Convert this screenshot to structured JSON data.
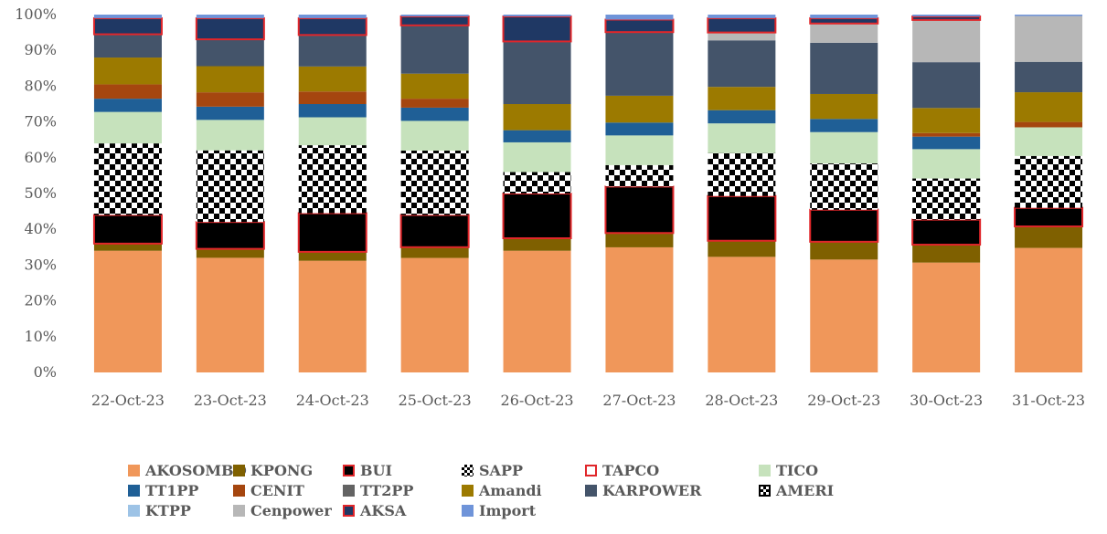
{
  "chart_data": {
    "type": "bar",
    "stacked": true,
    "normalized": true,
    "categories": [
      "22-Oct-23",
      "23-Oct-23",
      "24-Oct-23",
      "25-Oct-23",
      "26-Oct-23",
      "27-Oct-23",
      "28-Oct-23",
      "29-Oct-23",
      "30-Oct-23",
      "31-Oct-23"
    ],
    "y_ticks": [
      "0%",
      "10%",
      "20%",
      "30%",
      "40%",
      "50%",
      "60%",
      "70%",
      "80%",
      "90%",
      "100%"
    ],
    "ylim": [
      0,
      100
    ],
    "grid": false,
    "legend_position": "bottom",
    "series": [
      {
        "name": "AKOSOMBO",
        "color": "#F0975A",
        "pattern": "solid",
        "values": [
          34,
          32,
          31.2,
          32,
          34,
          35,
          32.3,
          31.7,
          30.7,
          34.8
        ]
      },
      {
        "name": "KPONG",
        "color": "#7F6000",
        "pattern": "solid",
        "values": [
          2,
          2.5,
          2.5,
          3,
          3.5,
          4,
          4.5,
          5,
          5,
          6
        ]
      },
      {
        "name": "BUI",
        "color": "#000000",
        "border": "#E0262A",
        "pattern": "solid",
        "values": [
          8,
          7.5,
          10.8,
          9,
          12.5,
          13,
          12.5,
          9,
          7,
          5.2
        ]
      },
      {
        "name": "SAPP",
        "color": "#000000",
        "pattern": "checker",
        "values": [
          20,
          20,
          19,
          18,
          6,
          6,
          12,
          13,
          11.5,
          14.5
        ]
      },
      {
        "name": "TAPCO",
        "color": "#FFFFFF",
        "border": "#E0262A",
        "pattern": "solid",
        "values": [
          0,
          0,
          0,
          0,
          0,
          0,
          0,
          0,
          0,
          0
        ]
      },
      {
        "name": "TICO",
        "color": "#C6E2BC",
        "pattern": "solid",
        "values": [
          8.8,
          8.5,
          7.8,
          8.3,
          8.3,
          8.3,
          8.3,
          8.8,
          8.2,
          8
        ]
      },
      {
        "name": "TT1PP",
        "color": "#1F5F96",
        "pattern": "solid",
        "values": [
          3.7,
          3.7,
          3.7,
          3.7,
          3.4,
          3.6,
          3.7,
          3.7,
          3.5,
          0
        ]
      },
      {
        "name": "CENIT",
        "color": "#A5460F",
        "pattern": "solid",
        "values": [
          4,
          4,
          3.5,
          2.5,
          0,
          0,
          0,
          0,
          1,
          1.5
        ]
      },
      {
        "name": "TT2PP",
        "color": "#636363",
        "pattern": "solid",
        "values": [
          0,
          0,
          0,
          0,
          0,
          0,
          0,
          0,
          0,
          0
        ]
      },
      {
        "name": "Amandi",
        "color": "#9C7A00",
        "pattern": "solid",
        "values": [
          7.5,
          7.3,
          7,
          7,
          7.3,
          7.5,
          6.5,
          7,
          7,
          8.3
        ]
      },
      {
        "name": "KARPOWER",
        "color": "#44546A",
        "pattern": "solid",
        "values": [
          6.5,
          7.5,
          8.8,
          13.5,
          17.5,
          17.8,
          13,
          14.4,
          12.8,
          8.5
        ]
      },
      {
        "name": "AMERI",
        "color": "#000000",
        "border": "#000000",
        "pattern": "checker",
        "values": [
          0,
          0,
          0,
          0,
          0,
          0,
          0,
          0,
          0,
          0
        ]
      },
      {
        "name": "KTPP",
        "color": "#9DC3E6",
        "pattern": "solid",
        "values": [
          0,
          0,
          0,
          0,
          0,
          0,
          0,
          0,
          0,
          0
        ]
      },
      {
        "name": "Cenpower",
        "color": "#B7B7B7",
        "pattern": "solid",
        "values": [
          0,
          0,
          0,
          0,
          0,
          0,
          2.2,
          5.4,
          11.8,
          12.8
        ]
      },
      {
        "name": "AKSA",
        "color": "#1F3864",
        "border": "#E0262A",
        "pattern": "solid",
        "values": [
          4.5,
          5.9,
          4.7,
          2.5,
          7,
          3.5,
          4,
          1.5,
          1,
          0
        ]
      },
      {
        "name": "Import",
        "color": "#6F94D9",
        "pattern": "solid",
        "values": [
          1,
          1,
          1,
          0.5,
          0.5,
          1.4,
          1,
          1,
          0.5,
          0.4
        ]
      }
    ]
  }
}
